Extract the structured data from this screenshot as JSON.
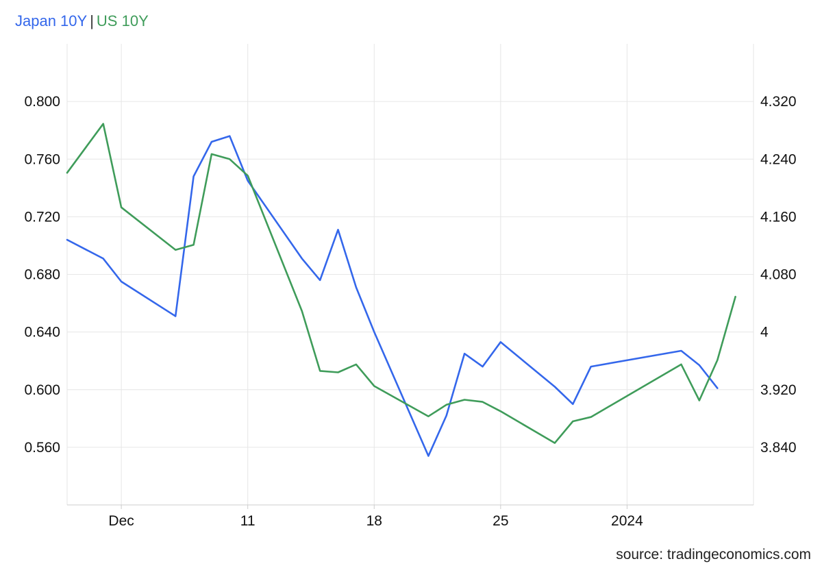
{
  "chart_data": {
    "type": "line",
    "legend": [
      "Japan 10Y",
      "US 10Y"
    ],
    "legend_separator": "|",
    "colors": {
      "Japan 10Y": "#3467eb",
      "US 10Y": "#3f9c5a"
    },
    "x": [
      "2023-11-28",
      "2023-11-30",
      "2023-12-01",
      "2023-12-04",
      "2023-12-05",
      "2023-12-06",
      "2023-12-07",
      "2023-12-08",
      "2023-12-11",
      "2023-12-12",
      "2023-12-13",
      "2023-12-14",
      "2023-12-15",
      "2023-12-18",
      "2023-12-19",
      "2023-12-20",
      "2023-12-21",
      "2023-12-22",
      "2023-12-25",
      "2023-12-26",
      "2023-12-27",
      "2023-12-28",
      "2023-12-29",
      "2024-01-01",
      "2024-01-02",
      "2024-01-03",
      "2024-01-04",
      "2024-01-05"
    ],
    "x_ticks": [
      {
        "date": "2023-12-01",
        "label": "Dec"
      },
      {
        "date": "2023-12-08",
        "label": "11"
      },
      {
        "date": "2023-12-15",
        "label": "18"
      },
      {
        "date": "2023-12-22",
        "label": "25"
      },
      {
        "date": "2023-12-29",
        "label": "2024"
      }
    ],
    "series": [
      {
        "name": "Japan 10Y",
        "axis": "left",
        "values": [
          0.704,
          0.691,
          0.675,
          0.651,
          0.748,
          0.772,
          0.776,
          0.745,
          0.691,
          0.676,
          0.711,
          0.671,
          0.64,
          0.554,
          0.582,
          0.625,
          0.616,
          0.633,
          0.602,
          0.59,
          0.616,
          null,
          null,
          0.627,
          0.617,
          0.601,
          null,
          null
        ]
      },
      {
        "name": "US 10Y",
        "axis": "right",
        "values": [
          4.221,
          4.289,
          4.173,
          4.114,
          4.121,
          4.247,
          4.24,
          4.217,
          4.029,
          3.946,
          3.944,
          3.955,
          3.925,
          3.883,
          3.899,
          3.906,
          3.903,
          3.89,
          3.846,
          3.876,
          3.882,
          null,
          null,
          3.955,
          3.905,
          3.961,
          4.049,
          null
        ]
      }
    ],
    "left_axis": {
      "ticks": [
        "0.560",
        "0.600",
        "0.640",
        "0.680",
        "0.720",
        "0.760",
        "0.800"
      ],
      "range": [
        0.52,
        0.84
      ]
    },
    "right_axis": {
      "ticks": [
        "3.840",
        "3.920",
        "4",
        "4.080",
        "4.160",
        "4.240",
        "4.320"
      ],
      "range": [
        3.76,
        4.4
      ]
    },
    "grid": true
  },
  "source": "source: tradingeconomics.com"
}
